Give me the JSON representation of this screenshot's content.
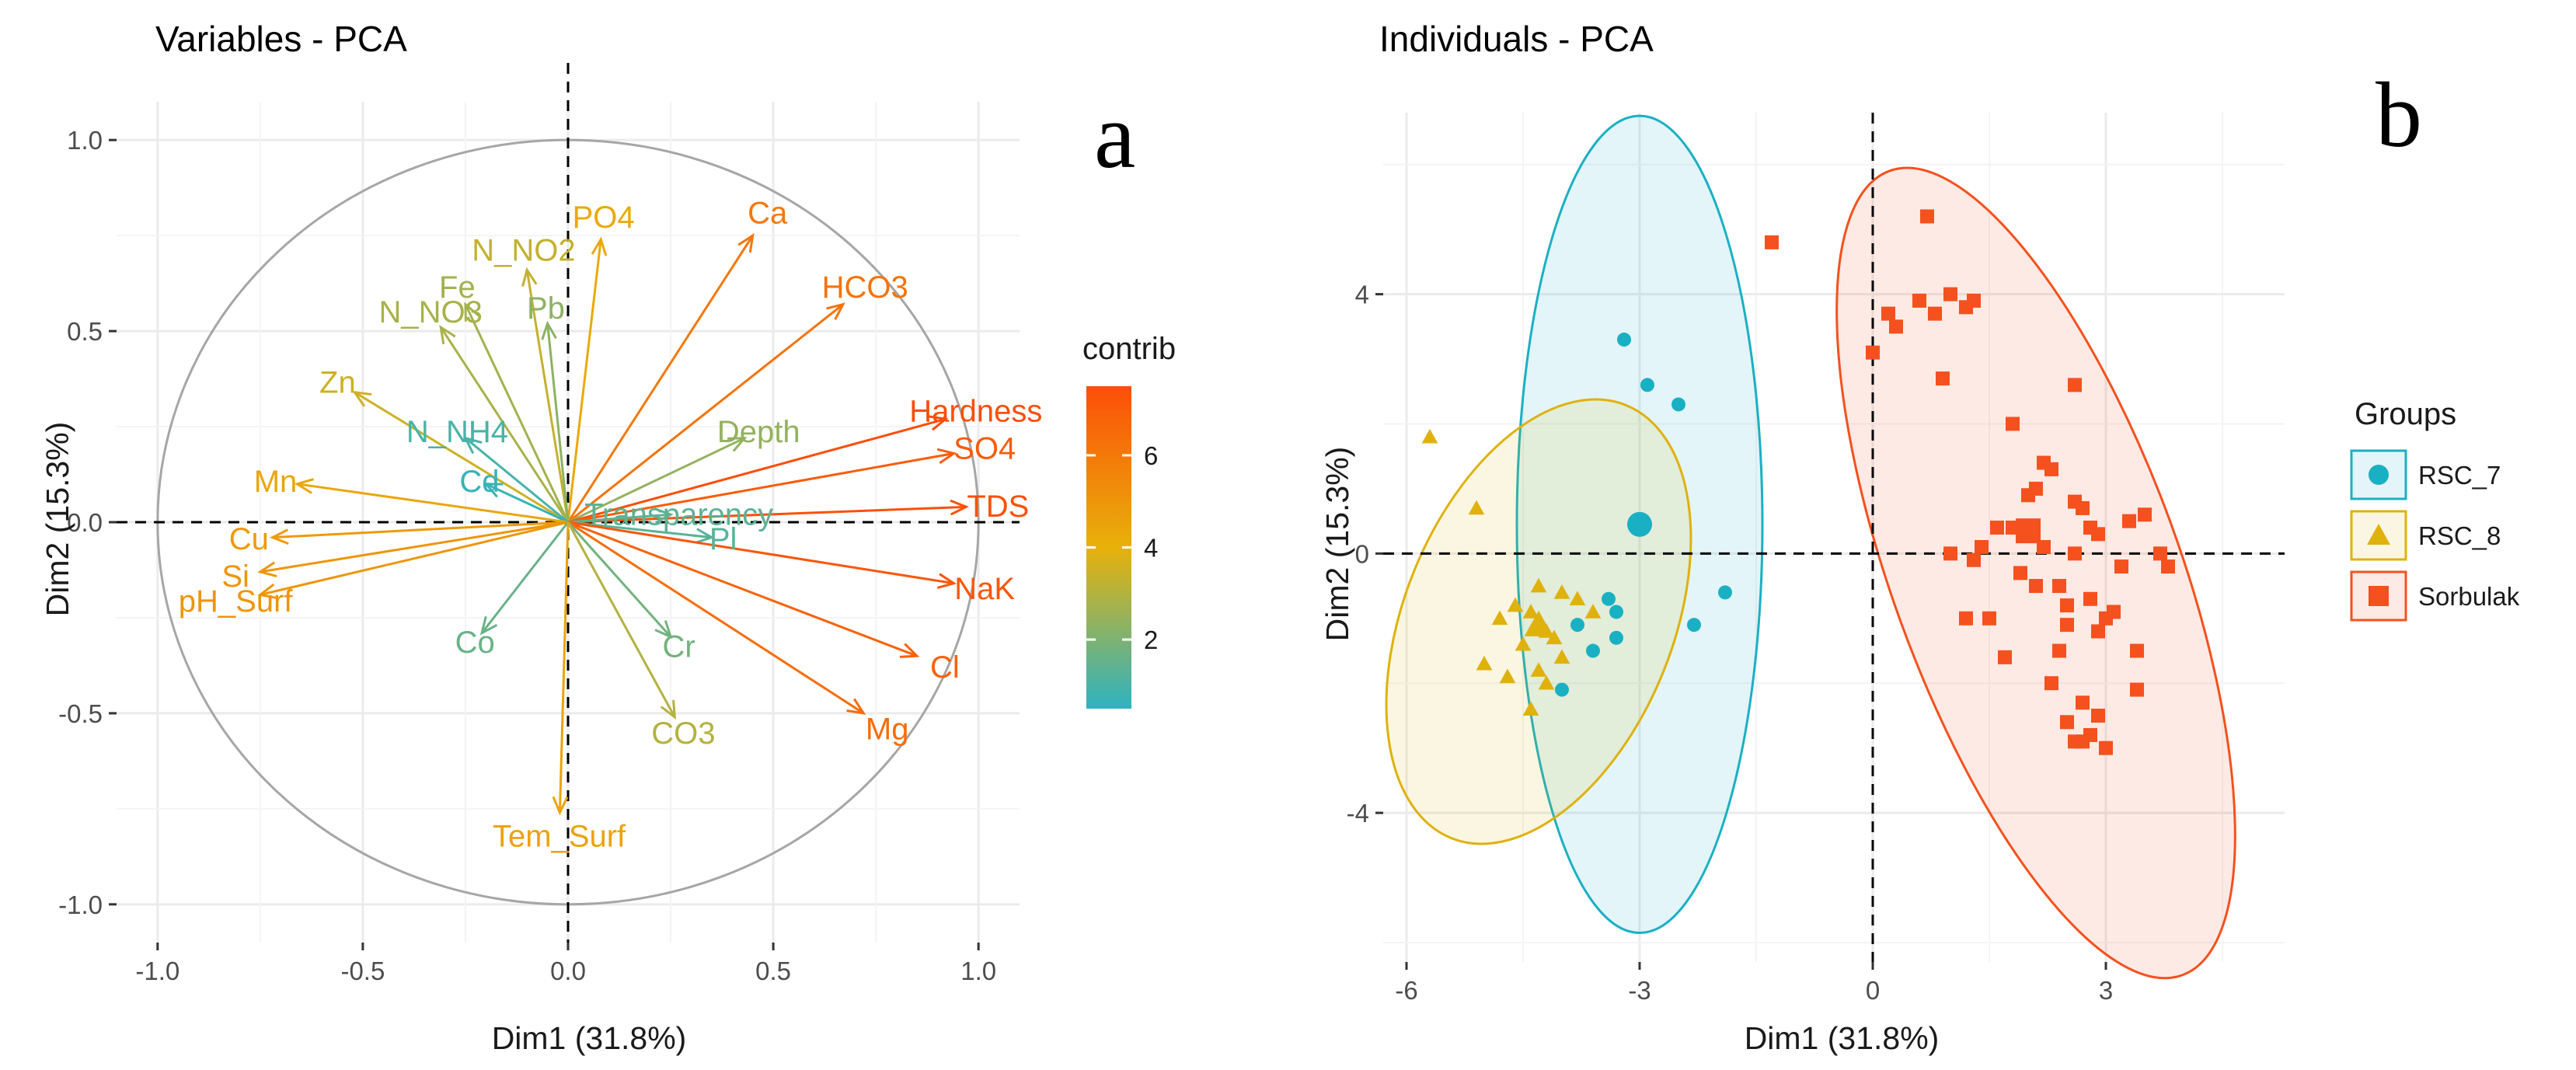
{
  "panels": {
    "a": {
      "title": "Variables - PCA",
      "letter": "a",
      "xlabel": "Dim1 (31.8%)",
      "ylabel": "Dim2 (15.3%)",
      "xticks": [
        "-1.0",
        "-0.5",
        "0.0",
        "0.5",
        "1.0"
      ],
      "yticks": [
        "1.0",
        "0.5",
        "0.0",
        "-0.5",
        "-1.0"
      ],
      "legend_title": "contrib",
      "legend_ticks": [
        "6",
        "4",
        "2"
      ]
    },
    "b": {
      "title": "Individuals - PCA",
      "letter": "b",
      "xlabel": "Dim1 (31.8%)",
      "ylabel": "Dim2 (15.3%)",
      "xticks": [
        "-6",
        "-3",
        "0",
        "3"
      ],
      "yticks": [
        "4",
        "0",
        "-4"
      ],
      "legend_title": "Groups",
      "groups": [
        "RSC_7",
        "RSC_8",
        "Sorbulak"
      ]
    }
  },
  "colors": {
    "contrib_low": "#2db3c2",
    "contrib_mid": "#e8b10a",
    "contrib_high": "#fc4e08",
    "rsc7": "#1ab0c3",
    "rsc8": "#dfb10c",
    "sorbulak": "#f4511e",
    "grid": "#ebebeb",
    "circle": "#a6a6a6"
  },
  "chart_data": [
    {
      "type": "scatter",
      "name": "variables-pca-biplot",
      "title": "Variables - PCA",
      "xlabel": "Dim1 (31.8%)",
      "ylabel": "Dim2 (15.3%)",
      "xlim": [
        -1.1,
        1.1
      ],
      "ylim": [
        -1.1,
        1.1
      ],
      "grid": true,
      "legend_position": "right",
      "color_scale": {
        "name": "contrib",
        "min": 0.5,
        "max": 7.5,
        "ticks": [
          2,
          4,
          6
        ]
      },
      "series": [
        {
          "name": "Ca",
          "x": 0.45,
          "y": 0.75,
          "contrib": 6.0
        },
        {
          "name": "HCO3",
          "x": 0.67,
          "y": 0.57,
          "contrib": 6.2
        },
        {
          "name": "PO4",
          "x": 0.08,
          "y": 0.74,
          "contrib": 4.3
        },
        {
          "name": "N_NO2",
          "x": -0.1,
          "y": 0.66,
          "contrib": 3.3
        },
        {
          "name": "Fe",
          "x": -0.25,
          "y": 0.57,
          "contrib": 2.7
        },
        {
          "name": "Pb",
          "x": -0.05,
          "y": 0.52,
          "contrib": 2.3
        },
        {
          "name": "N_NO3",
          "x": -0.31,
          "y": 0.51,
          "contrib": 2.8
        },
        {
          "name": "Zn",
          "x": -0.52,
          "y": 0.34,
          "contrib": 3.5
        },
        {
          "name": "N_NH4",
          "x": -0.25,
          "y": 0.22,
          "contrib": 1.0
        },
        {
          "name": "Cd",
          "x": -0.2,
          "y": 0.1,
          "contrib": 0.7
        },
        {
          "name": "Mn",
          "x": -0.66,
          "y": 0.1,
          "contrib": 4.4
        },
        {
          "name": "Cu",
          "x": -0.72,
          "y": -0.04,
          "contrib": 4.8
        },
        {
          "name": "Si",
          "x": -0.75,
          "y": -0.13,
          "contrib": 5.0
        },
        {
          "name": "pH_Surf",
          "x": -0.75,
          "y": -0.19,
          "contrib": 5.0
        },
        {
          "name": "Co",
          "x": -0.21,
          "y": -0.29,
          "contrib": 1.6
        },
        {
          "name": "Depth",
          "x": 0.43,
          "y": 0.22,
          "contrib": 2.4
        },
        {
          "name": "Hardness",
          "x": 0.92,
          "y": 0.27,
          "contrib": 7.5
        },
        {
          "name": "SO4",
          "x": 0.94,
          "y": 0.18,
          "contrib": 7.0
        },
        {
          "name": "TDS",
          "x": 0.97,
          "y": 0.04,
          "contrib": 7.4
        },
        {
          "name": "Transparency",
          "x": 0.25,
          "y": 0.02,
          "contrib": 1.4
        },
        {
          "name": "Pl",
          "x": 0.35,
          "y": -0.04,
          "contrib": 1.3
        },
        {
          "name": "NaK",
          "x": 0.94,
          "y": -0.16,
          "contrib": 7.2
        },
        {
          "name": "Cl",
          "x": 0.85,
          "y": -0.35,
          "contrib": 6.8
        },
        {
          "name": "Mg",
          "x": 0.72,
          "y": -0.5,
          "contrib": 6.4
        },
        {
          "name": "Cr",
          "x": 0.25,
          "y": -0.3,
          "contrib": 1.8
        },
        {
          "name": "CO3",
          "x": 0.26,
          "y": -0.51,
          "contrib": 3.0
        },
        {
          "name": "Tem_Surf",
          "x": -0.02,
          "y": -0.76,
          "contrib": 4.5
        }
      ],
      "annotations": [
        "a"
      ]
    },
    {
      "type": "scatter",
      "name": "individuals-pca",
      "title": "Individuals - PCA",
      "xlabel": "Dim1 (31.8%)",
      "ylabel": "Dim2 (15.3%)",
      "xlim": [
        -6.3,
        5.3
      ],
      "ylim": [
        -6.3,
        6.8
      ],
      "grid": true,
      "legend_title": "Groups",
      "legend_position": "right",
      "series": [
        {
          "name": "RSC_7",
          "marker": "circle",
          "x": [
            -3.2,
            -2.9,
            -2.5,
            -3.0,
            -1.9,
            -2.3,
            -3.4,
            -3.3,
            -3.3,
            -3.8,
            -3.6,
            -4.0
          ],
          "y": [
            3.3,
            2.6,
            2.3,
            0.45,
            -0.6,
            -1.1,
            -0.7,
            -0.9,
            -1.3,
            -1.1,
            -1.5,
            -2.1
          ],
          "centroid": [
            -3.0,
            0.45
          ],
          "ellipse": {
            "cx": -3.0,
            "cy": 0.45,
            "rx": 1.58,
            "ry": 6.3,
            "angle_deg": 0
          }
        },
        {
          "name": "RSC_8",
          "marker": "triangle",
          "x": [
            -5.7,
            -5.1,
            -4.3,
            -4.0,
            -4.6,
            -4.8,
            -4.4,
            -4.2,
            -4.5,
            -4.1,
            -3.8,
            -3.6,
            -4.3,
            -5.0,
            -4.7,
            -4.2,
            -4.4,
            -4.0
          ],
          "y": [
            1.8,
            0.7,
            -0.5,
            -0.6,
            -0.8,
            -1.0,
            -0.9,
            -1.2,
            -1.4,
            -1.3,
            -0.7,
            -0.9,
            -1.8,
            -1.7,
            -1.9,
            -2.0,
            -2.4,
            -1.6
          ],
          "centroid": [
            -4.3,
            -1.1
          ],
          "ellipse": {
            "cx": -4.3,
            "cy": -1.05,
            "rx": 1.73,
            "ry": 3.6,
            "angle_deg": 22
          }
        },
        {
          "name": "Sorbulak",
          "marker": "square",
          "x": [
            -1.3,
            0.7,
            1.0,
            0.6,
            0.2,
            0.0,
            0.3,
            0.8,
            1.3,
            1.2,
            0.9,
            2.6,
            1.8,
            2.2,
            2.1,
            2.3,
            2.6,
            2.7,
            2.8,
            3.3,
            3.5,
            3.8,
            3.7,
            1.6,
            1.8,
            1.4,
            1.9,
            2.4,
            2.5,
            2.8,
            3.0,
            3.1,
            2.9,
            2.4,
            1.7,
            1.3,
            1.2,
            2.0,
            2.2,
            2.6,
            2.9,
            3.2,
            2.5,
            3.4,
            2.3,
            2.7,
            2.5,
            2.8,
            2.6,
            2.7,
            2.9,
            3.4,
            3.0,
            1.5,
            2.1,
            1.0
          ],
          "y": [
            4.8,
            5.2,
            4.0,
            3.9,
            3.7,
            3.1,
            3.5,
            3.7,
            3.9,
            3.8,
            2.7,
            2.6,
            2.0,
            1.4,
            1.0,
            1.3,
            0.8,
            0.7,
            0.4,
            0.5,
            0.6,
            -0.2,
            0.0,
            0.4,
            0.4,
            0.1,
            -0.3,
            -0.5,
            -0.8,
            -0.7,
            -1.0,
            -0.9,
            -1.2,
            -1.5,
            -1.6,
            -0.1,
            -1.0,
            0.9,
            0.1,
            0.0,
            0.3,
            -0.2,
            -1.1,
            -1.5,
            -2.0,
            -2.3,
            -2.6,
            -2.8,
            -2.9,
            -2.9,
            -2.5,
            -2.1,
            -3.0,
            -1.0,
            -0.5,
            0.0
          ],
          "centroid": [
            2.0,
            0.35
          ],
          "ellipse": {
            "cx": 2.1,
            "cy": -0.3,
            "rx": 1.85,
            "ry": 6.6,
            "angle_deg": -20
          }
        }
      ],
      "annotations": [
        "b"
      ]
    }
  ]
}
